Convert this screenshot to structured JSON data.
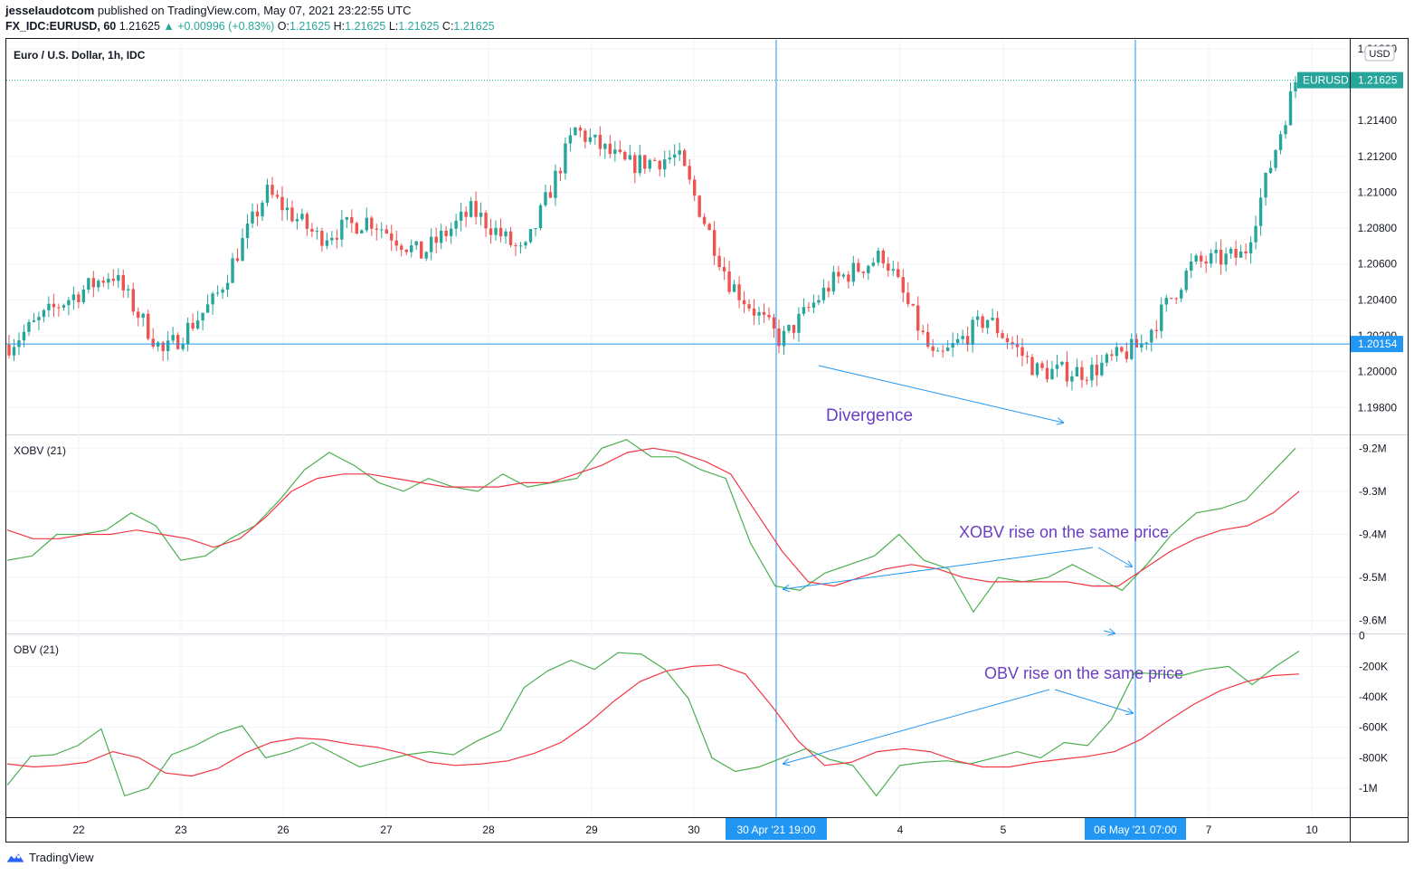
{
  "header": {
    "publisher": "jesseIaudotcom",
    "published_text": "published on TradingView.com, May 07, 2021 23:22:55 UTC",
    "symbol": "FX_IDC:EURUSD, 60",
    "last": "1.21625",
    "change": "▲ +0.00996 (+0.83%)",
    "o_label": "O:",
    "o": "1.21625",
    "h_label": "H:",
    "h": "1.21625",
    "l_label": "L:",
    "l": "1.21625",
    "c_label": "C:",
    "c": "1.21625"
  },
  "footer": {
    "brand": "TradingView"
  },
  "colors": {
    "up": "#26a69a",
    "down": "#ef5350",
    "indicator": "#4caf50",
    "ma": "#f23645",
    "crosshair": "#2196f3",
    "annotation": "#6b3fc1",
    "price_tag": "#26a69a",
    "grid": "#f0f3fa"
  },
  "chart_data": [
    {
      "type": "candlestick",
      "title": "Euro / U.S. Dollar, 1h, IDC",
      "currency": "USD",
      "ylim": [
        1.1965,
        1.2185
      ],
      "y_ticks": [
        "1.21800",
        "1.21400",
        "1.21200",
        "1.21000",
        "1.20800",
        "1.20600",
        "1.20400",
        "1.20200",
        "1.20000",
        "1.19800"
      ],
      "x_ticks": [
        "22",
        "23",
        "26",
        "27",
        "28",
        "29",
        "30",
        "4",
        "5",
        "7",
        "10"
      ],
      "last_price_label": "EURUSD",
      "last_price": "1.21625",
      "crosshair_price": "1.20154",
      "crosshair_times": [
        "30 Apr '21   19:00",
        "06 May '21   07:00"
      ],
      "annotation": "Divergence",
      "close_path_approx": [
        [
          "21 Apr",
          1.2015
        ],
        [
          "22 Apr",
          1.2038
        ],
        [
          "22 Apr late",
          1.2055
        ],
        [
          "23 Apr",
          1.201
        ],
        [
          "23 Apr late",
          1.204
        ],
        [
          "26 Apr",
          1.21
        ],
        [
          "26 Apr late",
          1.2075
        ],
        [
          "27 Apr",
          1.2085
        ],
        [
          "27 Apr late",
          1.2065
        ],
        [
          "28 Apr",
          1.209
        ],
        [
          "28 Apr late",
          1.2065
        ],
        [
          "29 Apr",
          1.2135
        ],
        [
          "29 Apr late",
          1.2115
        ],
        [
          "30 Apr",
          1.212
        ],
        [
          "30 Apr late",
          1.205
        ],
        [
          "30 Apr 19:00",
          1.2017
        ],
        [
          "3 May",
          1.205
        ],
        [
          "3 May late",
          1.2065
        ],
        [
          "4 May",
          1.2005
        ],
        [
          "4 May late",
          1.203
        ],
        [
          "5 May",
          1.2
        ],
        [
          "5 May late",
          1.2
        ],
        [
          "6 May 07:00",
          1.2015
        ],
        [
          "6 May late",
          1.206
        ],
        [
          "7 May",
          1.2065
        ],
        [
          "7 May late",
          1.2162
        ]
      ]
    },
    {
      "type": "line",
      "title": "XOBV (21)",
      "ylim": [
        -9.63,
        -9.17
      ],
      "y_ticks": [
        "-9.2M",
        "-9.3M",
        "-9.4M",
        "-9.5M",
        "-9.6M"
      ],
      "annotation": "XOBV rise on the same price",
      "series": [
        {
          "name": "XOBV",
          "values": [
            -9.46,
            -9.45,
            -9.4,
            -9.4,
            -9.39,
            -9.35,
            -9.38,
            -9.46,
            -9.45,
            -9.41,
            -9.38,
            -9.32,
            -9.25,
            -9.21,
            -9.24,
            -9.28,
            -9.3,
            -9.27,
            -9.29,
            -9.3,
            -9.26,
            -9.29,
            -9.28,
            -9.27,
            -9.2,
            -9.18,
            -9.22,
            -9.22,
            -9.25,
            -9.27,
            -9.42,
            -9.52,
            -9.53,
            -9.49,
            -9.47,
            -9.45,
            -9.4,
            -9.46,
            -9.48,
            -9.58,
            -9.5,
            -9.51,
            -9.5,
            -9.47,
            -9.5,
            -9.53,
            -9.47,
            -9.4,
            -9.35,
            -9.34,
            -9.32,
            -9.26,
            -9.2
          ]
        },
        {
          "name": "MA",
          "values": [
            -9.39,
            -9.41,
            -9.41,
            -9.4,
            -9.4,
            -9.39,
            -9.4,
            -9.41,
            -9.43,
            -9.41,
            -9.36,
            -9.3,
            -9.27,
            -9.26,
            -9.26,
            -9.27,
            -9.28,
            -9.29,
            -9.29,
            -9.29,
            -9.28,
            -9.28,
            -9.26,
            -9.24,
            -9.21,
            -9.2,
            -9.21,
            -9.23,
            -9.26,
            -9.35,
            -9.44,
            -9.51,
            -9.52,
            -9.5,
            -9.48,
            -9.47,
            -9.48,
            -9.5,
            -9.51,
            -9.51,
            -9.51,
            -9.51,
            -9.52,
            -9.52,
            -9.48,
            -9.44,
            -9.41,
            -9.39,
            -9.38,
            -9.35,
            -9.3
          ]
        }
      ]
    },
    {
      "type": "line",
      "title": "OBV (21)",
      "ylim": [
        -1190000,
        10000
      ],
      "y_ticks": [
        "0",
        "-200K",
        "-400K",
        "-600K",
        "-800K",
        "-1M"
      ],
      "annotation": "OBV rise on the same price",
      "series": [
        {
          "name": "OBV",
          "values": [
            -980000,
            -790000,
            -780000,
            -720000,
            -610000,
            -1050000,
            -1000000,
            -780000,
            -720000,
            -640000,
            -590000,
            -800000,
            -760000,
            -700000,
            -780000,
            -860000,
            -820000,
            -780000,
            -760000,
            -780000,
            -690000,
            -620000,
            -340000,
            -230000,
            -160000,
            -220000,
            -110000,
            -120000,
            -220000,
            -410000,
            -800000,
            -890000,
            -860000,
            -800000,
            -740000,
            -810000,
            -850000,
            -1050000,
            -850000,
            -830000,
            -820000,
            -840000,
            -800000,
            -760000,
            -800000,
            -700000,
            -720000,
            -550000,
            -240000,
            -250000,
            -260000,
            -220000,
            -200000,
            -320000,
            -200000,
            -100000
          ]
        },
        {
          "name": "MA",
          "values": [
            -840000,
            -860000,
            -850000,
            -830000,
            -760000,
            -800000,
            -900000,
            -920000,
            -870000,
            -770000,
            -700000,
            -670000,
            -680000,
            -710000,
            -730000,
            -770000,
            -830000,
            -850000,
            -840000,
            -820000,
            -770000,
            -700000,
            -580000,
            -430000,
            -300000,
            -230000,
            -200000,
            -190000,
            -250000,
            -460000,
            -690000,
            -850000,
            -830000,
            -760000,
            -740000,
            -760000,
            -820000,
            -860000,
            -860000,
            -830000,
            -810000,
            -790000,
            -760000,
            -680000,
            -560000,
            -450000,
            -360000,
            -300000,
            -260000,
            -250000
          ]
        }
      ]
    }
  ]
}
